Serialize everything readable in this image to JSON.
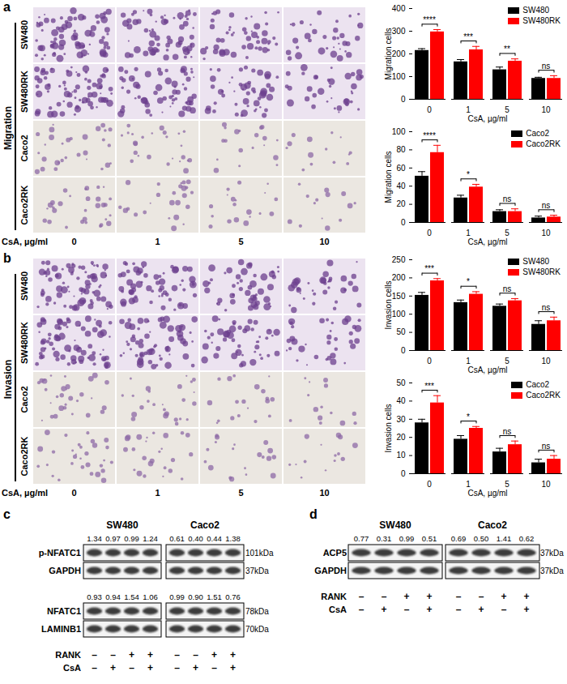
{
  "chart_data": [
    {
      "type": "bar",
      "x_label": "CsA, µg/ml",
      "y_label": "Migration cells",
      "categories": [
        0,
        1,
        5,
        10
      ],
      "series": [
        {
          "name": "SW480",
          "color": "#000000",
          "values": [
            215,
            165,
            130,
            92
          ],
          "errors": [
            8,
            10,
            12,
            5
          ]
        },
        {
          "name": "SW480RK",
          "color": "#ff0000",
          "values": [
            297,
            218,
            168,
            92
          ],
          "errors": [
            10,
            15,
            10,
            12
          ]
        }
      ],
      "annotations": [
        "****",
        "***",
        "**",
        "ns"
      ],
      "ylim": [
        0,
        400
      ],
      "yticks": [
        0,
        100,
        200,
        300,
        400
      ],
      "legend": "top-right"
    },
    {
      "type": "bar",
      "x_label": "CsA, µg/ml",
      "y_label": "Migration cells",
      "categories": [
        0,
        1,
        5,
        10
      ],
      "series": [
        {
          "name": "Caco2",
          "color": "#000000",
          "values": [
            51,
            27,
            12,
            5
          ],
          "errors": [
            5,
            3,
            2,
            2
          ]
        },
        {
          "name": "Caco2RK",
          "color": "#ff0000",
          "values": [
            77,
            39,
            12,
            6
          ],
          "errors": [
            8,
            3,
            3,
            2
          ]
        }
      ],
      "annotations": [
        "****",
        "*",
        "ns",
        "ns"
      ],
      "ylim": [
        0,
        100
      ],
      "yticks": [
        0,
        20,
        40,
        60,
        80,
        100
      ],
      "legend": "top-right"
    },
    {
      "type": "bar",
      "x_label": "CsA, µg/ml",
      "y_label": "Invasion cells",
      "categories": [
        0,
        1,
        5,
        10
      ],
      "series": [
        {
          "name": "SW480",
          "color": "#000000",
          "values": [
            152,
            132,
            122,
            72
          ],
          "errors": [
            8,
            7,
            6,
            10
          ]
        },
        {
          "name": "SW480RK",
          "color": "#ff0000",
          "values": [
            192,
            155,
            137,
            82
          ],
          "errors": [
            6,
            7,
            6,
            10
          ]
        }
      ],
      "annotations": [
        "***",
        "*",
        "ns",
        "ns"
      ],
      "ylim": [
        0,
        250
      ],
      "yticks": [
        0,
        50,
        100,
        150,
        200,
        250
      ],
      "legend": "top-right"
    },
    {
      "type": "bar",
      "x_label": "CsA, µg/ml",
      "y_label": "Invasion cells",
      "categories": [
        0,
        1,
        5,
        10
      ],
      "series": [
        {
          "name": "Caco2",
          "color": "#000000",
          "values": [
            28,
            19,
            12,
            6
          ],
          "errors": [
            2,
            2,
            2,
            2
          ]
        },
        {
          "name": "Caco2RK",
          "color": "#ff0000",
          "values": [
            39,
            25,
            16,
            8
          ],
          "errors": [
            4,
            1,
            2,
            2
          ]
        }
      ],
      "annotations": [
        "***",
        "*",
        "ns",
        "ns"
      ],
      "ylim": [
        0,
        50
      ],
      "yticks": [
        0,
        10,
        20,
        30,
        40,
        50
      ],
      "legend": "top-right"
    }
  ],
  "image_panels": [
    {
      "letter": "a",
      "label": "Migration",
      "rows": [
        "SW480",
        "SW480RK",
        "Caco2",
        "Caco2RK"
      ],
      "x_label": "CsA, µg/ml",
      "columns": [
        0,
        1,
        5,
        10
      ]
    },
    {
      "letter": "b",
      "label": "Invasion",
      "rows": [
        "SW480",
        "SW480RK",
        "Caco2",
        "Caco2RK"
      ],
      "x_label": "CsA, µg/ml",
      "columns": [
        0,
        1,
        5,
        10
      ]
    }
  ],
  "blot_panels": [
    {
      "letter": "c",
      "groups": [
        "SW480",
        "Caco2"
      ],
      "blots": [
        {
          "values": [
            "1.34",
            "0.97",
            "0.99",
            "1.24",
            "0.61",
            "0.40",
            "0.44",
            "1.38"
          ],
          "bands": [
            {
              "name": "p-NFATC1",
              "size": "101kDa"
            },
            {
              "name": "GAPDH",
              "size": "37kDa"
            }
          ]
        },
        {
          "values": [
            "0.93",
            "0.94",
            "1.54",
            "1.06",
            "0.99",
            "0.90",
            "1.51",
            "0.76"
          ],
          "bands": [
            {
              "name": "NFATC1",
              "size": "78kDa"
            },
            {
              "name": "LAMINB1",
              "size": "70kDa"
            }
          ]
        }
      ],
      "conditions": [
        {
          "name": "RANK",
          "signs": [
            "–",
            "–",
            "+",
            "+",
            "–",
            "–",
            "+",
            "+"
          ]
        },
        {
          "name": "CsA",
          "signs": [
            "–",
            "+",
            "–",
            "+",
            "–",
            "+",
            "–",
            "+"
          ]
        }
      ]
    },
    {
      "letter": "d",
      "groups": [
        "SW480",
        "Caco2"
      ],
      "blots": [
        {
          "values": [
            "0.77",
            "0.31",
            "0.99",
            "0.51",
            "0.69",
            "0.50",
            "1.41",
            "0.62"
          ],
          "bands": [
            {
              "name": "ACP5",
              "size": "37kDa"
            },
            {
              "name": "GAPDH",
              "size": "37kDa"
            }
          ]
        }
      ],
      "conditions": [
        {
          "name": "RANK",
          "signs": [
            "–",
            "–",
            "+",
            "+",
            "–",
            "–",
            "+",
            "+"
          ]
        },
        {
          "name": "CsA",
          "signs": [
            "–",
            "+",
            "–",
            "+",
            "–",
            "+",
            "–",
            "+"
          ]
        }
      ]
    }
  ]
}
